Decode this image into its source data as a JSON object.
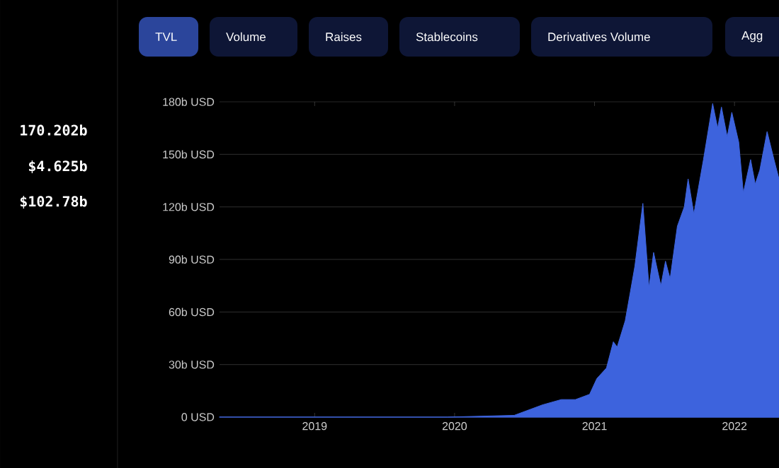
{
  "chart_data": {
    "type": "area",
    "x": [
      "2018-04-28",
      "2019-06-01",
      "2019-12-13",
      "2020-06-05",
      "2020-08-18",
      "2020-10-06",
      "2020-11-12",
      "2020-12-19",
      "2021-01-07",
      "2021-02-01",
      "2021-02-19",
      "2021-03-01",
      "2021-03-22",
      "2021-04-04",
      "2021-04-16",
      "2021-05-07",
      "2021-05-23",
      "2021-06-04",
      "2021-06-23",
      "2021-07-05",
      "2021-07-17",
      "2021-08-05",
      "2021-08-23",
      "2021-09-02",
      "2021-09-17",
      "2021-10-12",
      "2021-11-05",
      "2021-11-18",
      "2021-11-28",
      "2021-12-13",
      "2021-12-25",
      "2022-01-12",
      "2022-01-24",
      "2022-02-12",
      "2022-02-24",
      "2022-03-08",
      "2022-03-27",
      "2022-04-14",
      "2022-04-27"
    ],
    "values": [
      0,
      0,
      0,
      1,
      7,
      10,
      10,
      13,
      22,
      28,
      43,
      40,
      55,
      71,
      86,
      122,
      74,
      94,
      75,
      89,
      79,
      109,
      120,
      136,
      116,
      147,
      179,
      165,
      177,
      160,
      174,
      157,
      128,
      147,
      133,
      141,
      163,
      147,
      136
    ],
    "color": "#3d63dd",
    "xlim": [
      "2018-04-28",
      "2022-04-27"
    ],
    "xticks": [
      {
        "value": "2019-01-01",
        "label": "2019"
      },
      {
        "value": "2020-01-01",
        "label": "2020"
      },
      {
        "value": "2021-01-01",
        "label": "2021"
      },
      {
        "value": "2022-01-01",
        "label": "2022"
      }
    ],
    "ylim": [
      0,
      180
    ],
    "yticks": [
      {
        "value": 0,
        "label": "0 USD"
      },
      {
        "value": 30,
        "label": "30b USD"
      },
      {
        "value": 60,
        "label": "60b USD"
      },
      {
        "value": 90,
        "label": "90b USD"
      },
      {
        "value": 120,
        "label": "120b USD"
      },
      {
        "value": 150,
        "label": "150b USD"
      },
      {
        "value": 180,
        "label": "180b USD"
      }
    ],
    "grid": "y",
    "annotations": [
      "TVL",
      "Volume",
      "Raises",
      "Stablecoins",
      "Derivatives Volume",
      "Agg",
      "170.202b",
      "$4.625b",
      "$102.78b"
    ]
  }
}
